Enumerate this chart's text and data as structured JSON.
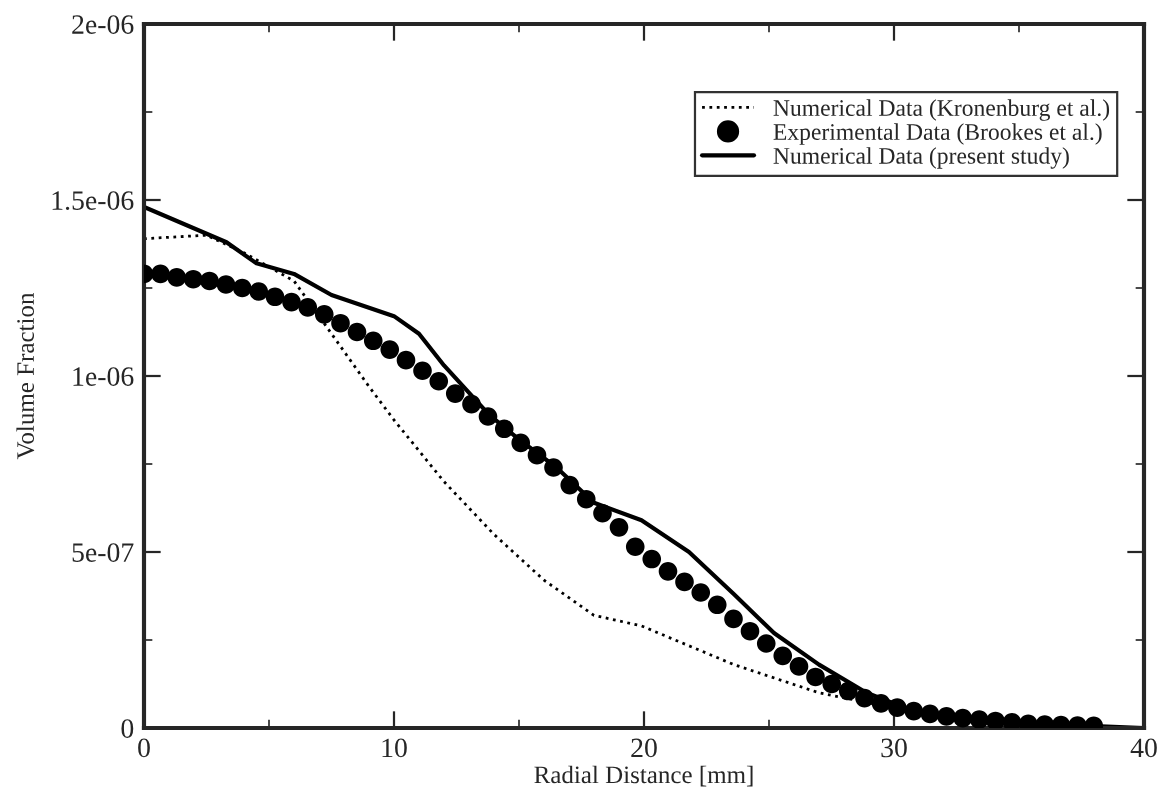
{
  "chart_data": {
    "type": "line",
    "xlabel": "Radial Distance [mm]",
    "ylabel": "Volume Fraction",
    "xlim": [
      0,
      40
    ],
    "ylim": [
      0,
      2e-06
    ],
    "xticks": [
      0,
      10,
      20,
      30,
      40
    ],
    "yticks": [
      {
        "value": 0,
        "label": "0"
      },
      {
        "value": 5e-07,
        "label": "5e-07"
      },
      {
        "value": 1e-06,
        "label": "1e-06"
      },
      {
        "value": 1.5e-06,
        "label": "1.5e-06"
      },
      {
        "value": 2e-06,
        "label": "2e-06"
      }
    ],
    "grid": false,
    "legend": "top right",
    "series": [
      {
        "name": "Numerical Data (Kronenburg et al.)",
        "color": "#000000",
        "line_style": "dotted",
        "marker": "none",
        "x": [
          0,
          2.5,
          4,
          6,
          7.5,
          9,
          10,
          12,
          14,
          16,
          18,
          19.9,
          23.6,
          27,
          30.5,
          33,
          36,
          40
        ],
        "values": [
          1.39e-06,
          1.4e-06,
          1.35e-06,
          1.27e-06,
          1.12e-06,
          9.7e-07,
          8.75e-07,
          7e-07,
          5.5e-07,
          4.2e-07,
          3.2e-07,
          2.9e-07,
          1.8e-07,
          1e-07,
          5e-08,
          2e-08,
          5e-09,
          0
        ]
      },
      {
        "name": "Experimental Data (Brookes et al.)",
        "color": "#000000",
        "type": "scatter",
        "marker": "circle",
        "x": [
          0,
          0.66,
          1.31,
          1.97,
          2.62,
          3.28,
          3.93,
          4.59,
          5.24,
          5.9,
          6.55,
          7.21,
          7.86,
          8.52,
          9.17,
          9.83,
          10.48,
          11.14,
          11.79,
          12.45,
          13.1,
          13.76,
          14.41,
          15.07,
          15.72,
          16.38,
          17.03,
          17.69,
          18.34,
          19.0,
          19.65,
          20.31,
          20.96,
          21.62,
          22.27,
          22.93,
          23.58,
          24.24,
          24.89,
          25.55,
          26.2,
          26.86,
          27.51,
          28.17,
          28.82,
          29.48,
          30.13,
          30.79,
          31.44,
          32.1,
          32.75,
          33.41,
          34.06,
          34.72,
          35.37,
          36.03,
          36.68,
          37.34,
          37.99
        ],
        "values": [
          1.29e-06,
          1.29e-06,
          1.28e-06,
          1.275e-06,
          1.27e-06,
          1.26e-06,
          1.25e-06,
          1.24e-06,
          1.225e-06,
          1.21e-06,
          1.195e-06,
          1.175e-06,
          1.15e-06,
          1.125e-06,
          1.1e-06,
          1.075e-06,
          1.045e-06,
          1.015e-06,
          9.85e-07,
          9.5e-07,
          9.2e-07,
          8.85e-07,
          8.5e-07,
          8.1e-07,
          7.75e-07,
          7.4e-07,
          6.9e-07,
          6.5e-07,
          6.1e-07,
          5.7e-07,
          5.15e-07,
          4.8e-07,
          4.45e-07,
          4.15e-07,
          3.85e-07,
          3.5e-07,
          3.1e-07,
          2.75e-07,
          2.4e-07,
          2.05e-07,
          1.75e-07,
          1.45e-07,
          1.25e-07,
          1.05e-07,
          8.5e-08,
          7e-08,
          5.8e-08,
          4.8e-08,
          4e-08,
          3.3e-08,
          2.8e-08,
          2.4e-08,
          2e-08,
          1.6e-08,
          1.2e-08,
          1e-08,
          8e-09,
          7e-09,
          6e-09
        ]
      },
      {
        "name": "Numerical Data (present study)",
        "color": "#000000",
        "line_style": "solid",
        "marker": "none",
        "x": [
          0,
          3.3,
          4.5,
          6,
          7.5,
          10,
          11,
          12,
          13.8,
          15,
          16.5,
          18,
          19.9,
          21.8,
          23.6,
          25.2,
          27,
          28.9,
          30.7,
          33,
          40
        ],
        "values": [
          1.48e-06,
          1.38e-06,
          1.32e-06,
          1.29e-06,
          1.23e-06,
          1.17e-06,
          1.12e-06,
          1.03e-06,
          8.9e-07,
          8.2e-07,
          7.4e-07,
          6.4e-07,
          5.9e-07,
          5e-07,
          3.8e-07,
          2.7e-07,
          1.8e-07,
          1e-07,
          5e-08,
          2e-08,
          0
        ]
      }
    ]
  }
}
